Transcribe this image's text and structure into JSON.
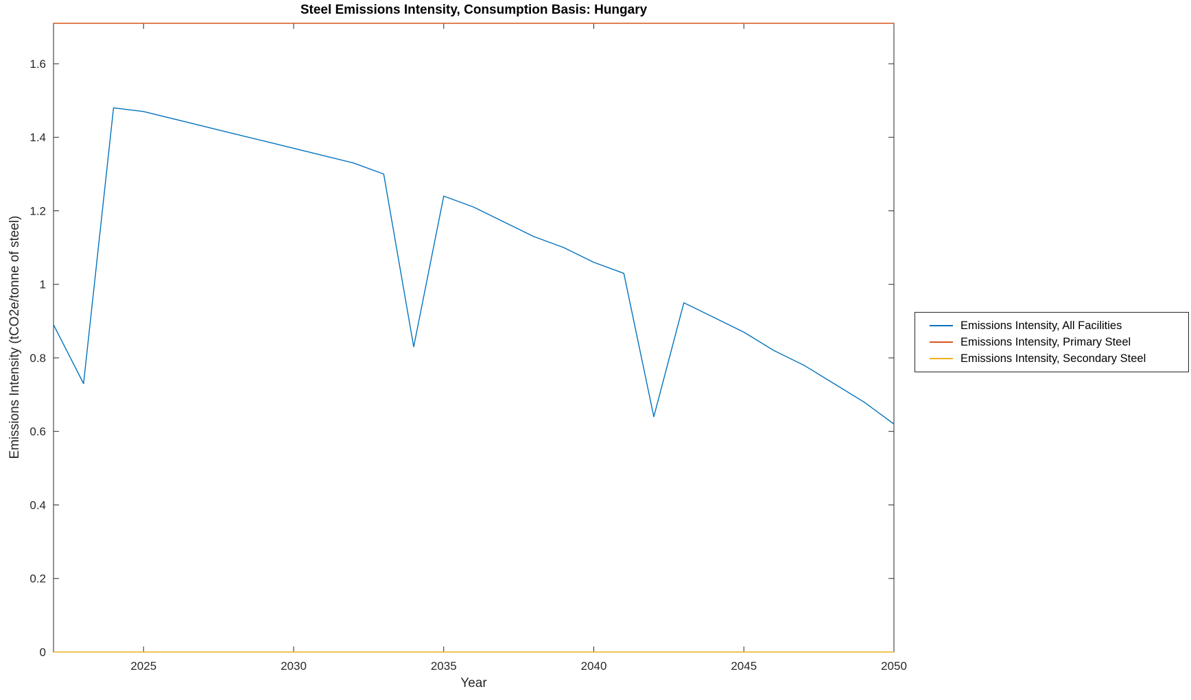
{
  "chart_data": {
    "type": "line",
    "title": "Steel Emissions Intensity, Consumption Basis: Hungary",
    "xlabel": "Year",
    "ylabel": "Emissions Intensity (tCO2e/tonne of steel)",
    "xlim": [
      2022,
      2050
    ],
    "ylim": [
      0,
      1.71
    ],
    "xticks": [
      2025,
      2030,
      2035,
      2040,
      2045,
      2050
    ],
    "yticks": [
      0,
      0.2,
      0.4,
      0.6,
      0.8,
      1,
      1.2,
      1.4,
      1.6
    ],
    "ytick_labels": [
      "0",
      "0.2",
      "0.4",
      "0.6",
      "0.8",
      "1",
      "1.2",
      "1.4",
      "1.6"
    ],
    "grid": false,
    "legend_position": "right-outside",
    "axis_color": "#262626",
    "x": [
      2022,
      2023,
      2024,
      2025,
      2026,
      2027,
      2028,
      2029,
      2030,
      2031,
      2032,
      2033,
      2034,
      2035,
      2036,
      2037,
      2038,
      2039,
      2040,
      2041,
      2042,
      2043,
      2044,
      2045,
      2046,
      2047,
      2048,
      2049,
      2050
    ],
    "series": [
      {
        "name": "Emissions Intensity, All Facilities",
        "color": "#0072BD",
        "values": [
          0.89,
          0.73,
          1.48,
          1.47,
          1.45,
          1.43,
          1.41,
          1.39,
          1.37,
          1.35,
          1.33,
          1.3,
          0.83,
          1.24,
          1.21,
          1.17,
          1.13,
          1.1,
          1.06,
          1.03,
          0.64,
          0.95,
          0.91,
          0.87,
          0.82,
          0.78,
          0.73,
          0.68,
          0.62
        ]
      },
      {
        "name": "Emissions Intensity, Primary Steel",
        "color": "#D95319",
        "constant_value": 1.71
      },
      {
        "name": "Emissions Intensity, Secondary Steel",
        "color": "#EDB120",
        "constant_value": 0
      }
    ]
  }
}
